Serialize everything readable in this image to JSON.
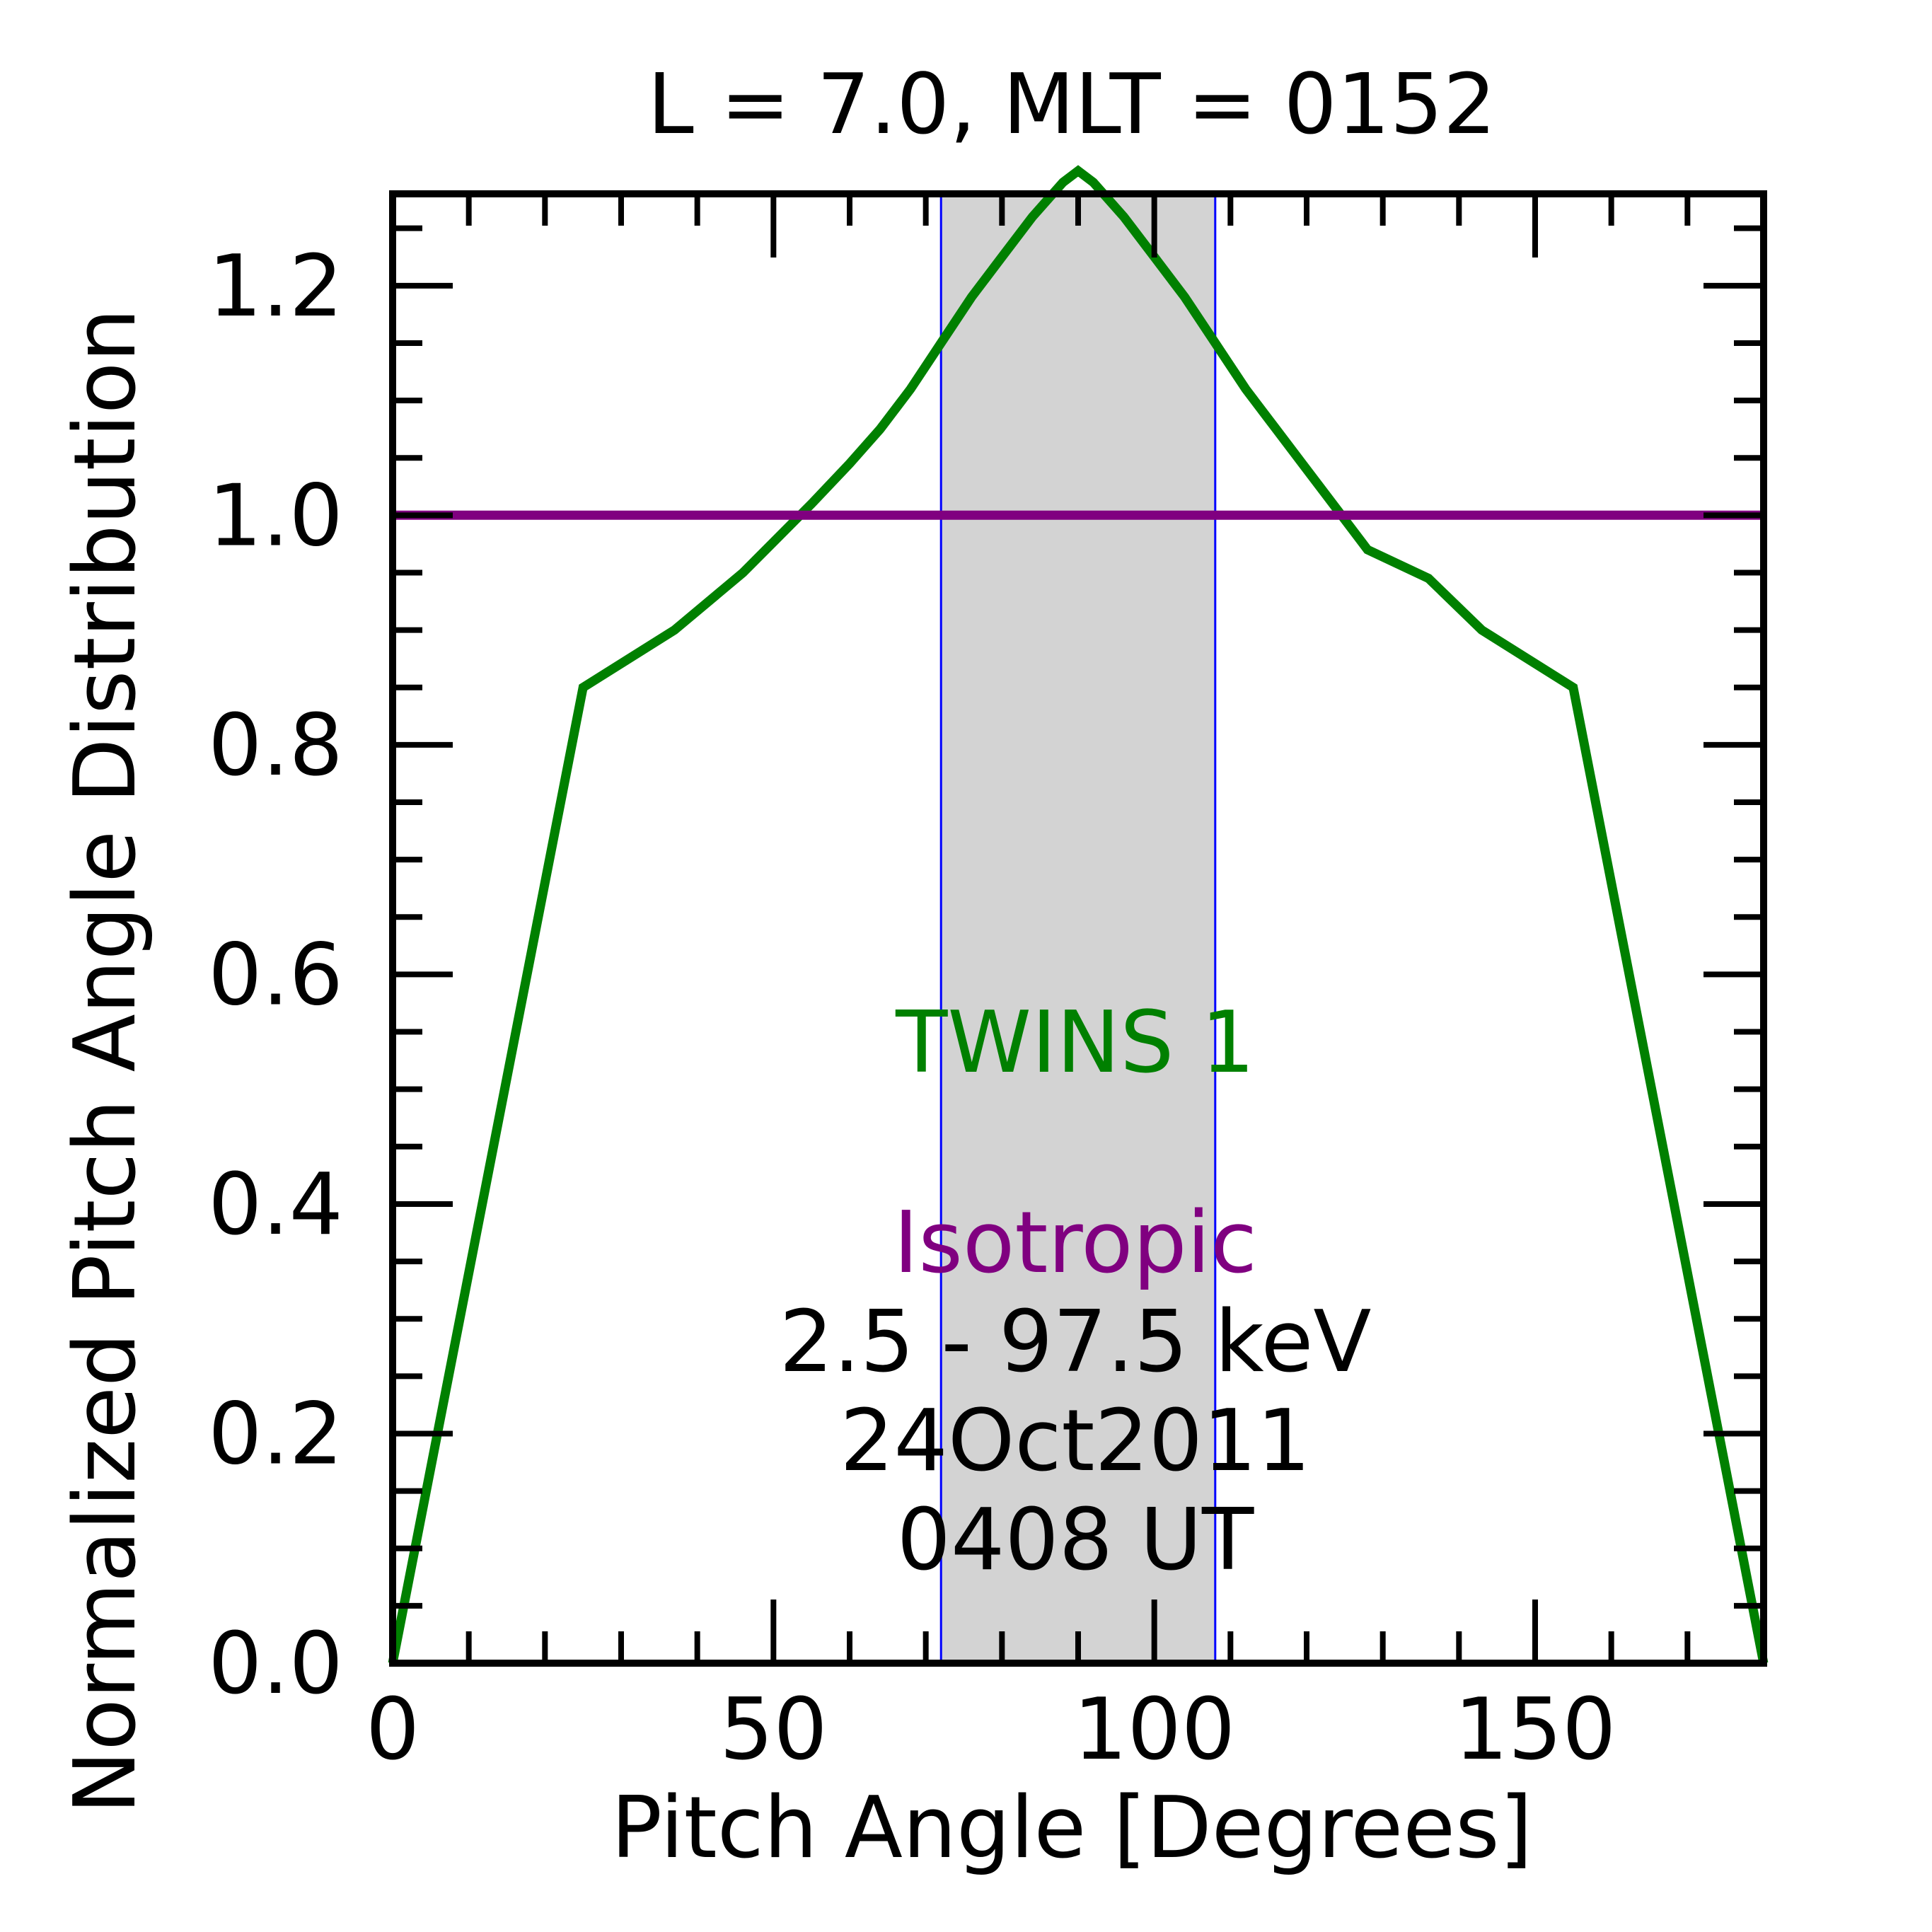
{
  "chart_data": {
    "type": "line",
    "title": "L =  7.0, MLT = 0152",
    "xlabel": "Pitch Angle [Degrees]",
    "ylabel": "Normalized Pitch Angle Distribution",
    "xlim": [
      0,
      180
    ],
    "ylim": [
      0,
      1.28
    ],
    "xticks": [
      0,
      50,
      100,
      150
    ],
    "xtick_labels": [
      "0",
      "50",
      "100",
      "150"
    ],
    "yticks": [
      0.0,
      0.2,
      0.4,
      0.6,
      0.8,
      1.0,
      1.2
    ],
    "ytick_labels": [
      "0.0",
      "0.2",
      "0.4",
      "0.6",
      "0.8",
      "1.0",
      "1.2"
    ],
    "grid": false,
    "shaded_region": {
      "x": [
        72,
        108
      ],
      "color": "#d3d3d3",
      "edge_color": "#0000ff"
    },
    "series": [
      {
        "name": "TWINS 1",
        "color": "#008000",
        "x": [
          0,
          25,
          37,
          46,
          55,
          60,
          64,
          68,
          72,
          76,
          80,
          84,
          88,
          90,
          92,
          96,
          100,
          104,
          108,
          112,
          116,
          120,
          124,
          128,
          136,
          143,
          155,
          180
        ],
        "y": [
          0.0,
          0.85,
          0.9,
          0.95,
          1.01,
          1.045,
          1.075,
          1.11,
          1.15,
          1.19,
          1.225,
          1.26,
          1.29,
          1.3,
          1.29,
          1.26,
          1.225,
          1.19,
          1.15,
          1.11,
          1.075,
          1.04,
          1.005,
          0.97,
          0.945,
          0.9,
          0.85,
          0.0
        ]
      },
      {
        "name": "Isotropic",
        "color": "#800080",
        "x": [
          0,
          180
        ],
        "y": [
          1.0,
          1.0
        ]
      }
    ],
    "annotations": {
      "series1_label": "TWINS 1",
      "series2_label": "Isotropic",
      "energy_range": "2.5 - 97.5 keV",
      "date": "24Oct2011",
      "time": "0408 UT"
    }
  }
}
